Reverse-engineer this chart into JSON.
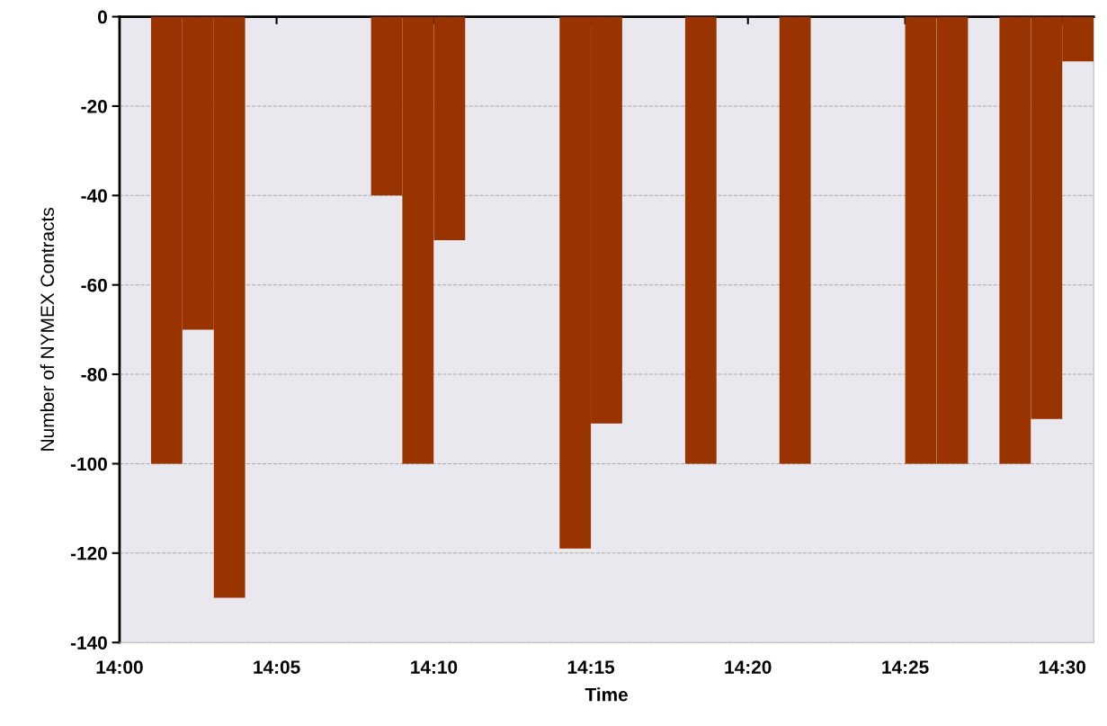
{
  "chart_data": {
    "type": "bar",
    "xlabel": "Time",
    "ylabel": "Number of NYMEX Contracts",
    "x": [
      14.025,
      14.0417,
      14.0583,
      14.1417,
      14.1583,
      14.175,
      14.2417,
      14.2583,
      14.3083,
      14.3583,
      14.425,
      14.4417,
      14.475,
      14.4917,
      14.5083
    ],
    "values": [
      -100,
      -70,
      -130,
      -40,
      -100,
      -50,
      -119,
      -91,
      -100,
      -100,
      -100,
      -100,
      -100,
      -90,
      -10
    ],
    "color": "#993300",
    "xlim": [
      14.0,
      14.5167
    ],
    "xticks": [
      {
        "value": 14.0,
        "label": "14:00"
      },
      {
        "value": 14.0833,
        "label": "14:05"
      },
      {
        "value": 14.1667,
        "label": "14:10"
      },
      {
        "value": 14.25,
        "label": "14:15"
      },
      {
        "value": 14.3333,
        "label": "14:20"
      },
      {
        "value": 14.4167,
        "label": "14:25"
      },
      {
        "value": 14.5,
        "label": "14:30"
      }
    ],
    "ylim": [
      -140,
      0
    ],
    "yticks": [
      -140,
      -120,
      -100,
      -80,
      -60,
      -40,
      -20,
      0
    ],
    "grid": "y"
  }
}
